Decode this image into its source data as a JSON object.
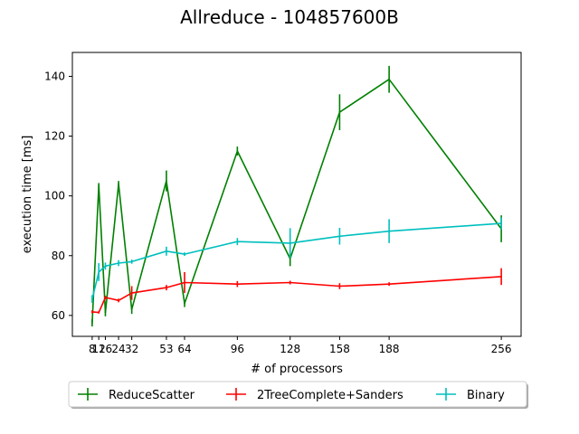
{
  "chart_data": {
    "type": "line",
    "title": "Allreduce - 104857600B",
    "xlabel": "# of processors",
    "ylabel": "execution time [ms]",
    "xlim": [
      -4,
      268
    ],
    "ylim": [
      53,
      148
    ],
    "xticks": [
      8,
      12,
      16,
      24,
      32,
      53,
      64,
      96,
      128,
      158,
      188,
      256
    ],
    "xtick_labels": [
      "8",
      "12",
      "16",
      "24",
      "32",
      "53",
      "64",
      "96",
      "128",
      "158",
      "188",
      "256"
    ],
    "yticks": [
      60,
      80,
      100,
      120,
      140
    ],
    "grid": false,
    "legend_position": "bottom-center",
    "series": [
      {
        "name": "ReduceScatter",
        "color": "#008000",
        "x": [
          8,
          12,
          16,
          24,
          32,
          53,
          64,
          96,
          128,
          158,
          188,
          256
        ],
        "y": [
          57.5,
          103.5,
          61,
          104,
          62,
          105,
          64,
          115,
          79,
          128,
          139,
          89
        ],
        "err": [
          1.2,
          0.8,
          1.3,
          1,
          1.5,
          3.5,
          1.2,
          1.5,
          2.5,
          6,
          4.5,
          4.5
        ]
      },
      {
        "name": "2TreeComplete+Sanders",
        "color": "#ff0000",
        "x": [
          8,
          12,
          16,
          24,
          32,
          53,
          64,
          96,
          128,
          158,
          188,
          256
        ],
        "y": [
          61.2,
          61,
          66,
          65,
          67.5,
          69.3,
          71,
          70.5,
          71,
          69.8,
          70.5,
          73
        ],
        "err": [
          0.5,
          0.4,
          0.6,
          0.6,
          2.3,
          0.9,
          3.5,
          1,
          0.6,
          1,
          0.6,
          2.8
        ]
      },
      {
        "name": "Binary",
        "color": "#00bfbf",
        "x": [
          8,
          12,
          16,
          24,
          32,
          53,
          64,
          96,
          128,
          158,
          188,
          256
        ],
        "y": [
          65.5,
          74.5,
          76.5,
          77.5,
          78,
          81.5,
          80.5,
          84.7,
          84.2,
          86.5,
          88.2,
          90.8
        ],
        "err": [
          1.3,
          3,
          1.2,
          1,
          0.7,
          1.5,
          0.6,
          1.2,
          5,
          2.8,
          4,
          2
        ]
      }
    ]
  }
}
